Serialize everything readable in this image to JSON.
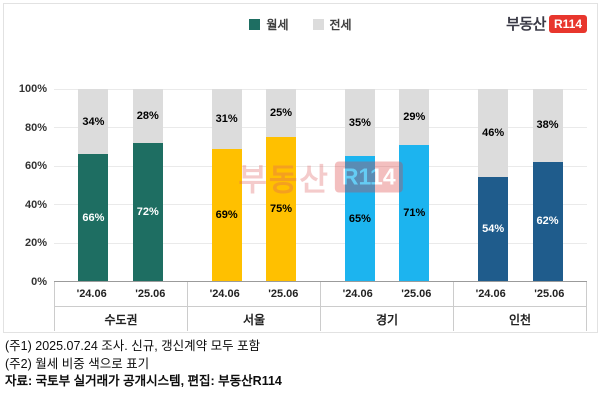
{
  "logo": {
    "text": "부동산",
    "badge": "R114"
  },
  "watermark": {
    "text": "부동산",
    "badge": "R114"
  },
  "legend": {
    "items": [
      {
        "label": "월세",
        "color": "#1e6e62"
      },
      {
        "label": "전세",
        "color": "#dcdcdc"
      }
    ]
  },
  "chart_data": {
    "type": "bar",
    "subtype": "stacked-100-percent",
    "series_names": [
      "월세",
      "전세"
    ],
    "unit": "%",
    "ylim": [
      0,
      100
    ],
    "yticks": [
      "100%",
      "80%",
      "60%",
      "40%",
      "20%",
      "0%"
    ],
    "grid": true,
    "legend_position": "top",
    "jeonse_color": "#dcdcdc",
    "groups": [
      {
        "region": "수도권",
        "color": "#1e6e62",
        "wolse_label_color": "#ffffff",
        "bars": [
          {
            "period": "'24.06",
            "wolse": 66,
            "jeonse": 34,
            "wolse_label": "66%",
            "jeonse_label": "34%"
          },
          {
            "period": "'25.06",
            "wolse": 72,
            "jeonse": 28,
            "wolse_label": "72%",
            "jeonse_label": "28%"
          }
        ]
      },
      {
        "region": "서울",
        "color": "#ffc000",
        "wolse_label_color": "#000000",
        "bars": [
          {
            "period": "'24.06",
            "wolse": 69,
            "jeonse": 31,
            "wolse_label": "69%",
            "jeonse_label": "31%"
          },
          {
            "period": "'25.06",
            "wolse": 75,
            "jeonse": 25,
            "wolse_label": "75%",
            "jeonse_label": "25%"
          }
        ]
      },
      {
        "region": "경기",
        "color": "#1cb4ef",
        "wolse_label_color": "#000000",
        "bars": [
          {
            "period": "'24.06",
            "wolse": 65,
            "jeonse": 35,
            "wolse_label": "65%",
            "jeonse_label": "35%"
          },
          {
            "period": "'25.06",
            "wolse": 71,
            "jeonse": 29,
            "wolse_label": "71%",
            "jeonse_label": "29%"
          }
        ]
      },
      {
        "region": "인천",
        "color": "#1f5c8c",
        "wolse_label_color": "#ffffff",
        "bars": [
          {
            "period": "'24.06",
            "wolse": 54,
            "jeonse": 46,
            "wolse_label": "54%",
            "jeonse_label": "46%"
          },
          {
            "period": "'25.06",
            "wolse": 62,
            "jeonse": 38,
            "wolse_label": "62%",
            "jeonse_label": "38%"
          }
        ]
      }
    ]
  },
  "footnotes": {
    "note1": "(주1) 2025.07.24 조사. 신규, 갱신계약 모두 포함",
    "note2": "(주2) 월세 비중 색으로 표기",
    "source": "자료: 국토부 실거래가 공개시스템, 편집: 부동산R114"
  }
}
